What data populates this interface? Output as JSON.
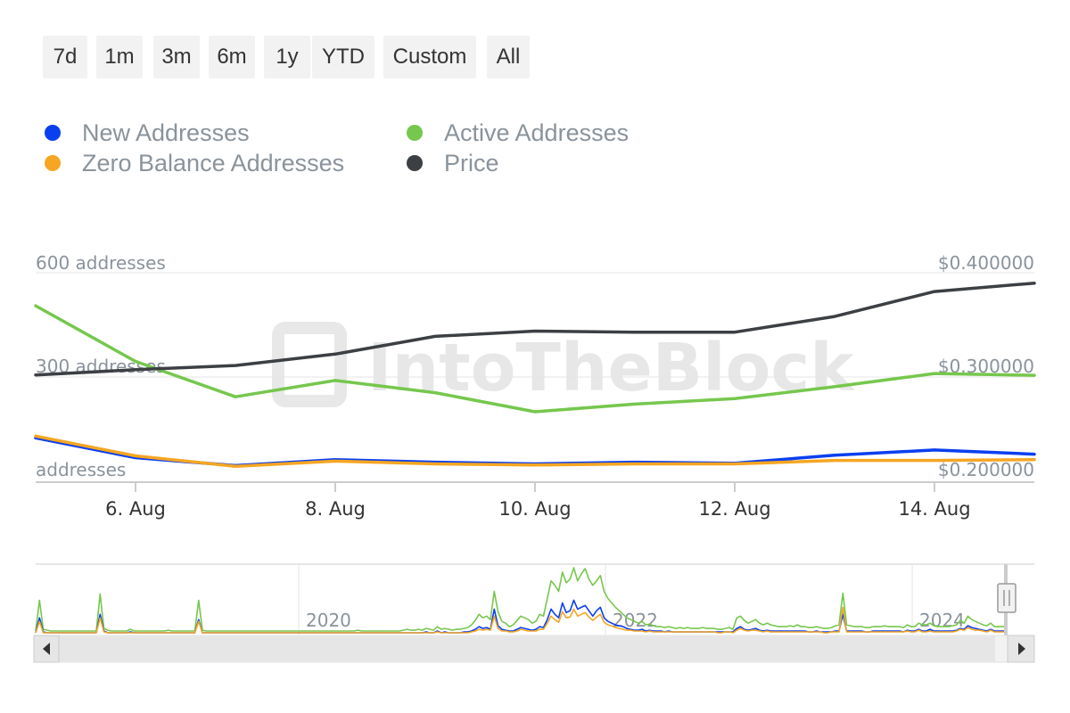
{
  "range_selector": {
    "buttons": [
      "7d",
      "1m",
      "3m",
      "6m",
      "1y",
      "YTD",
      "Custom",
      "All"
    ]
  },
  "legend": [
    {
      "label": "New Addresses",
      "color": "#0a3ff0"
    },
    {
      "label": "Active Addresses",
      "color": "#76c74d"
    },
    {
      "label": "Zero Balance Addresses",
      "color": "#f5a623"
    },
    {
      "label": "Price",
      "color": "#3c3f43"
    }
  ],
  "watermark": "IntoTheBlock",
  "chart_data": {
    "type": "line",
    "x": [
      "5 Aug",
      "6 Aug",
      "7 Aug",
      "8 Aug",
      "9 Aug",
      "10 Aug",
      "11 Aug",
      "12 Aug",
      "13 Aug",
      "14 Aug",
      "15 Aug"
    ],
    "x_tick_labels": [
      "6. Aug",
      "8. Aug",
      "10. Aug",
      "12. Aug",
      "14. Aug"
    ],
    "left_axis": {
      "tick_labels": [
        "600 addresses",
        "300 addresses",
        "addresses"
      ],
      "range": [
        0,
        600
      ]
    },
    "right_axis": {
      "tick_labels": [
        "$0.400000",
        "$0.300000",
        "$0.200000"
      ],
      "range": [
        0.2,
        0.4
      ]
    },
    "series": [
      {
        "name": "New Addresses",
        "axis": "left",
        "color": "#0a3ff0",
        "values": [
          125,
          68,
          45,
          62,
          55,
          50,
          55,
          52,
          75,
          90,
          78
        ]
      },
      {
        "name": "Active Addresses",
        "axis": "left",
        "color": "#76c74d",
        "values": [
          505,
          345,
          243,
          290,
          255,
          200,
          222,
          238,
          272,
          310,
          305
        ]
      },
      {
        "name": "Zero Balance Addresses",
        "axis": "left",
        "color": "#f5a623",
        "values": [
          130,
          73,
          43,
          58,
          50,
          47,
          50,
          50,
          60,
          60,
          62
        ]
      },
      {
        "name": "Price",
        "axis": "right",
        "color": "#3c3f43",
        "values": [
          0.302,
          0.307,
          0.311,
          0.322,
          0.339,
          0.344,
          0.343,
          0.343,
          0.358,
          0.382,
          0.39
        ]
      }
    ]
  },
  "navigator": {
    "year_labels": [
      "2020",
      "2022",
      "2024"
    ],
    "series": [
      {
        "name": "Active Addresses",
        "color": "#76c74d",
        "values": [
          3,
          38,
          5,
          4,
          3,
          3,
          3,
          3,
          3,
          3,
          3,
          3,
          3,
          3,
          3,
          3,
          3,
          45,
          6,
          4,
          3,
          3,
          3,
          3,
          3,
          5,
          3,
          3,
          3,
          3,
          3,
          3,
          3,
          3,
          3,
          4,
          3,
          3,
          3,
          3,
          3,
          3,
          3,
          38,
          4,
          3,
          3,
          3,
          3,
          3,
          3,
          3,
          3,
          3,
          3,
          3,
          3,
          3,
          3,
          3,
          3,
          3,
          3,
          3,
          3,
          3,
          3,
          3,
          3,
          3,
          3,
          3,
          3,
          3,
          3,
          3,
          3,
          3,
          3,
          3,
          3,
          3,
          3,
          3,
          3,
          4,
          3,
          3,
          3,
          3,
          3,
          3,
          3,
          3,
          3,
          3,
          3,
          4,
          5,
          4,
          4,
          5,
          4,
          6,
          5,
          4,
          8,
          5,
          6,
          5,
          4,
          5,
          5,
          6,
          7,
          10,
          15,
          22,
          18,
          20,
          16,
          48,
          25,
          14,
          12,
          8,
          10,
          15,
          20,
          18,
          16,
          12,
          14,
          22,
          20,
          40,
          60,
          55,
          48,
          70,
          58,
          62,
          75,
          60,
          68,
          74,
          62,
          55,
          60,
          66,
          48,
          40,
          35,
          30,
          26,
          22,
          18,
          16,
          14,
          12,
          14,
          10,
          11,
          9,
          8,
          8,
          7,
          8,
          7,
          6,
          7,
          6,
          7,
          6,
          6,
          6,
          7,
          6,
          6,
          6,
          5,
          5,
          6,
          7,
          5,
          18,
          20,
          15,
          12,
          14,
          16,
          12,
          10,
          12,
          10,
          9,
          8,
          8,
          8,
          9,
          8,
          10,
          8,
          8,
          7,
          7,
          8,
          7,
          6,
          6,
          7,
          9,
          10,
          46,
          10,
          9,
          8,
          8,
          8,
          7,
          7,
          8,
          8,
          8,
          9,
          8,
          8,
          8,
          8,
          7,
          10,
          8,
          8,
          12,
          10,
          10,
          12,
          9,
          8,
          8,
          8,
          8,
          9,
          10,
          15,
          12,
          20,
          16,
          14,
          12,
          10,
          9,
          12,
          8,
          8,
          8,
          8
        ]
      },
      {
        "name": "New Addresses",
        "color": "#0a3ff0",
        "values": [
          1,
          18,
          2,
          1,
          1,
          1,
          1,
          1,
          1,
          1,
          1,
          1,
          1,
          1,
          1,
          1,
          1,
          22,
          3,
          1,
          1,
          1,
          1,
          1,
          1,
          2,
          1,
          1,
          1,
          1,
          1,
          1,
          1,
          1,
          1,
          1,
          1,
          1,
          1,
          1,
          1,
          1,
          1,
          16,
          1,
          1,
          1,
          1,
          1,
          1,
          1,
          1,
          1,
          1,
          1,
          1,
          1,
          1,
          1,
          1,
          1,
          1,
          1,
          1,
          1,
          1,
          1,
          1,
          1,
          1,
          1,
          1,
          1,
          1,
          1,
          1,
          1,
          1,
          1,
          1,
          1,
          1,
          1,
          1,
          1,
          1,
          1,
          1,
          1,
          1,
          1,
          1,
          1,
          1,
          1,
          1,
          1,
          1,
          1,
          1,
          1,
          1,
          1,
          2,
          1,
          1,
          3,
          1,
          2,
          1,
          1,
          1,
          1,
          2,
          2,
          3,
          5,
          8,
          6,
          7,
          5,
          28,
          9,
          5,
          4,
          3,
          3,
          5,
          7,
          6,
          5,
          4,
          5,
          8,
          7,
          16,
          28,
          22,
          18,
          35,
          24,
          26,
          38,
          28,
          30,
          32,
          26,
          20,
          26,
          30,
          18,
          14,
          12,
          10,
          9,
          8,
          6,
          5,
          4,
          4,
          5,
          3,
          4,
          3,
          3,
          3,
          2,
          3,
          2,
          2,
          2,
          2,
          2,
          2,
          2,
          2,
          2,
          2,
          2,
          2,
          2,
          2,
          2,
          2,
          2,
          6,
          8,
          5,
          4,
          5,
          6,
          4,
          3,
          4,
          3,
          3,
          3,
          3,
          3,
          3,
          3,
          3,
          3,
          3,
          2,
          2,
          3,
          2,
          2,
          2,
          2,
          3,
          3,
          22,
          3,
          3,
          3,
          3,
          3,
          2,
          2,
          3,
          3,
          3,
          3,
          3,
          3,
          3,
          3,
          2,
          4,
          3,
          3,
          5,
          3,
          3,
          5,
          3,
          3,
          3,
          3,
          3,
          3,
          4,
          6,
          5,
          9,
          7,
          6,
          5,
          4,
          3,
          5,
          3,
          3,
          3,
          3
        ]
      },
      {
        "name": "Zero Balance Addresses",
        "color": "#f5a623",
        "values": [
          1,
          14,
          1,
          1,
          1,
          1,
          1,
          1,
          1,
          1,
          1,
          1,
          1,
          1,
          1,
          1,
          1,
          18,
          2,
          1,
          1,
          1,
          1,
          1,
          1,
          1,
          1,
          1,
          1,
          1,
          1,
          1,
          1,
          1,
          1,
          1,
          1,
          1,
          1,
          1,
          1,
          1,
          1,
          14,
          1,
          1,
          1,
          1,
          1,
          1,
          1,
          1,
          1,
          1,
          1,
          1,
          1,
          1,
          1,
          1,
          1,
          1,
          1,
          1,
          1,
          1,
          1,
          1,
          1,
          1,
          1,
          1,
          1,
          1,
          1,
          1,
          1,
          1,
          1,
          1,
          1,
          1,
          1,
          1,
          1,
          1,
          1,
          1,
          1,
          1,
          1,
          1,
          1,
          1,
          1,
          1,
          1,
          1,
          1,
          1,
          1,
          1,
          1,
          1,
          1,
          1,
          2,
          1,
          1,
          1,
          1,
          1,
          1,
          1,
          1,
          2,
          3,
          5,
          4,
          5,
          4,
          20,
          6,
          3,
          3,
          2,
          2,
          3,
          5,
          4,
          3,
          3,
          3,
          5,
          5,
          12,
          20,
          16,
          13,
          25,
          18,
          19,
          28,
          20,
          22,
          24,
          19,
          15,
          19,
          22,
          13,
          10,
          9,
          7,
          6,
          5,
          4,
          4,
          3,
          3,
          3,
          2,
          3,
          2,
          2,
          2,
          2,
          2,
          2,
          2,
          2,
          2,
          2,
          2,
          2,
          2,
          2,
          2,
          2,
          2,
          1,
          1,
          2,
          2,
          1,
          4,
          6,
          4,
          3,
          4,
          4,
          3,
          2,
          3,
          2,
          2,
          2,
          2,
          2,
          2,
          2,
          2,
          2,
          2,
          2,
          2,
          2,
          2,
          1,
          1,
          2,
          2,
          2,
          30,
          2,
          2,
          2,
          2,
          2,
          2,
          2,
          2,
          2,
          2,
          2,
          2,
          2,
          2,
          2,
          2,
          3,
          2,
          2,
          4,
          2,
          2,
          3,
          2,
          2,
          2,
          2,
          2,
          2,
          3,
          5,
          4,
          7,
          5,
          4,
          4,
          3,
          2,
          4,
          2,
          2,
          2,
          2
        ]
      }
    ]
  }
}
